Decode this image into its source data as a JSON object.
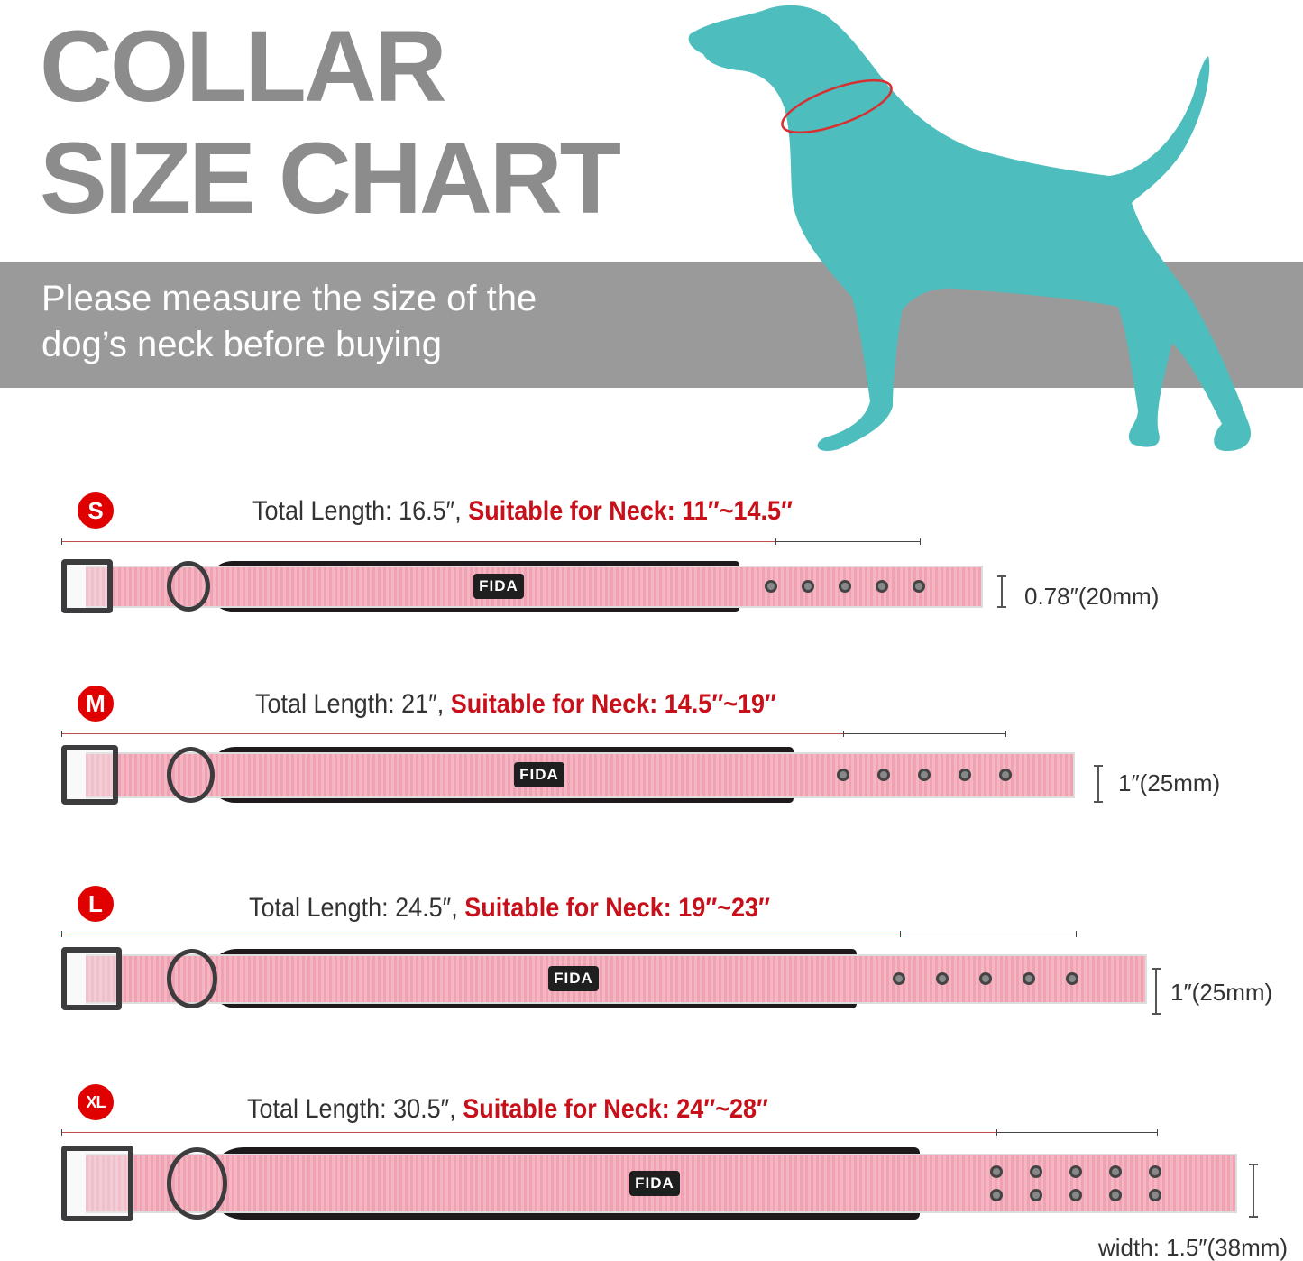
{
  "title_line1": "COLLAR",
  "title_line2": "SIZE CHART",
  "subtitle_line1": "Please measure the size of the",
  "subtitle_line2": "dog’s neck before buying",
  "colors": {
    "title_gray": "#8c8c8c",
    "band_gray": "#9a9a9a",
    "dog_teal": "#4dbdbd",
    "accent_red": "#e00000",
    "collar_pink": "#f5b6c3"
  },
  "brand_tag": "FIDA",
  "sizes": [
    {
      "badge": "S",
      "total_length": "Total Length: 16.5″,",
      "neck": "Suitable for Neck: 11″~14.5″",
      "width": "0.78″(20mm)",
      "hole_columns": 5,
      "hole_rows": 1
    },
    {
      "badge": "M",
      "total_length": "Total Length: 21″,",
      "neck": "Suitable for Neck: 14.5″~19″",
      "width": "1″(25mm)",
      "hole_columns": 5,
      "hole_rows": 1
    },
    {
      "badge": "L",
      "total_length": "Total Length: 24.5″,",
      "neck": "Suitable for Neck: 19″~23″",
      "width": "1″(25mm)",
      "hole_columns": 5,
      "hole_rows": 1
    },
    {
      "badge": "XL",
      "total_length": "Total Length: 30.5″,",
      "neck": "Suitable for Neck: 24″~28″",
      "width": "width: 1.5″(38mm)",
      "hole_columns": 5,
      "hole_rows": 2
    }
  ]
}
